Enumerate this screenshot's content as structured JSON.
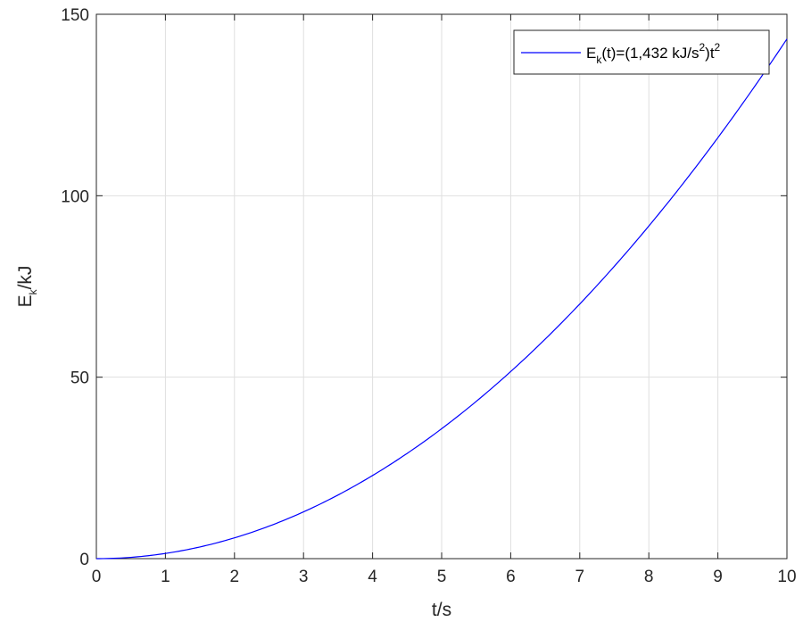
{
  "chart_data": {
    "type": "line",
    "title": "",
    "xlabel": "t/s",
    "ylabel": {
      "base": "E",
      "sub": "k",
      "rest": "/kJ"
    },
    "xlim": [
      0,
      10
    ],
    "ylim": [
      0,
      150
    ],
    "xticks": [
      0,
      1,
      2,
      3,
      4,
      5,
      6,
      7,
      8,
      9,
      10
    ],
    "yticks": [
      0,
      50,
      100,
      150
    ],
    "grid": true,
    "legend_position": "top-right",
    "series": [
      {
        "legend": {
          "a": "E",
          "b": "k",
          "c": "(t)=(1,432 kJ/s",
          "d": "2",
          "e": ")t",
          "f": "2"
        },
        "coefficient": 1.432,
        "exponent": 2,
        "color": "#0000ff",
        "x": [
          0,
          0.5,
          1,
          1.5,
          2,
          2.5,
          3,
          3.5,
          4,
          4.5,
          5,
          5.5,
          6,
          6.5,
          7,
          7.5,
          8,
          8.5,
          9,
          9.5,
          10
        ],
        "y": [
          0,
          0.358,
          1.432,
          3.222,
          5.728,
          8.95,
          12.888,
          17.542,
          22.912,
          28.998,
          35.8,
          43.318,
          51.552,
          60.502,
          70.168,
          80.55,
          91.648,
          103.462,
          115.992,
          129.238,
          143.2
        ]
      }
    ]
  }
}
